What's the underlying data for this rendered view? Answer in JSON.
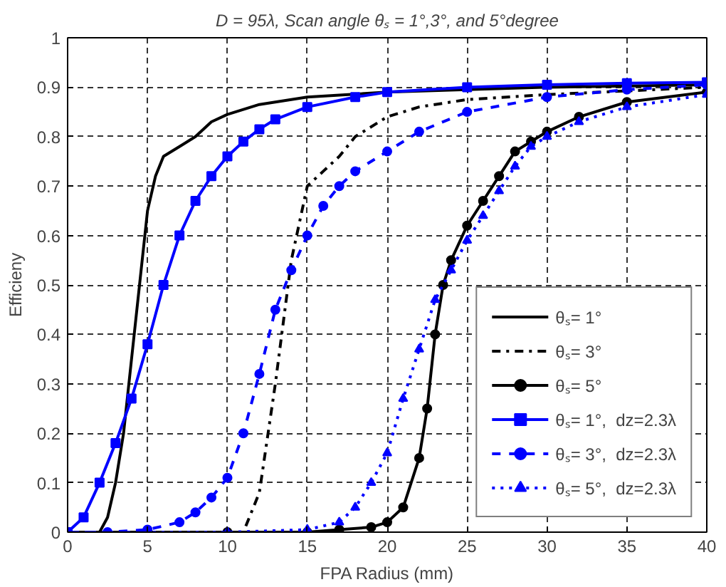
{
  "chart_data": {
    "type": "line",
    "title": "D = 95λ, Scan angle θₛ = 1°,3°, and 5°degree",
    "xlabel": "FPA Radius (mm)",
    "ylabel": "Efficieny",
    "xlim": [
      0,
      40
    ],
    "ylim": [
      0,
      1
    ],
    "xticks": [
      0,
      5,
      10,
      15,
      20,
      25,
      30,
      35,
      40
    ],
    "yticks": [
      0,
      {
        "value": 0.1,
        "label": "0.1"
      },
      {
        "value": 0.2,
        "label": "0.2"
      },
      {
        "value": 0.3,
        "label": "0.3"
      },
      {
        "value": 0.4,
        "label": "0.4"
      },
      {
        "value": 0.5,
        "label": "0.5"
      },
      {
        "value": 0.6,
        "label": "0.6"
      },
      {
        "value": 0.7,
        "label": "0.7"
      },
      {
        "value": 0.8,
        "label": "0.8"
      },
      {
        "value": 0.9,
        "label": "0.9"
      },
      1
    ],
    "grid": true,
    "legend": "bottom right",
    "series": [
      {
        "name": "θₛ= 1°",
        "color": "#000000",
        "marker": "none",
        "line_style": "solid",
        "x": [
          0,
          2,
          2.5,
          3,
          3.5,
          4,
          4.5,
          5,
          5.5,
          6,
          7,
          8,
          9,
          10,
          12,
          15,
          20,
          25,
          30,
          40
        ],
        "values": [
          0,
          0,
          0.03,
          0.1,
          0.2,
          0.35,
          0.5,
          0.65,
          0.72,
          0.76,
          0.78,
          0.8,
          0.83,
          0.845,
          0.865,
          0.88,
          0.89,
          0.895,
          0.9,
          0.905
        ]
      },
      {
        "name": "θₛ= 3°",
        "color": "#000000",
        "marker": "none",
        "line_style": "dashdot",
        "x": [
          0,
          11,
          12,
          13,
          14,
          15,
          16,
          17,
          18,
          20,
          22,
          25,
          30,
          40
        ],
        "values": [
          0,
          0,
          0.08,
          0.3,
          0.55,
          0.7,
          0.73,
          0.76,
          0.8,
          0.84,
          0.86,
          0.875,
          0.885,
          0.9
        ]
      },
      {
        "name": "θₛ= 5°",
        "color": "#000000",
        "marker": "circle",
        "line_style": "solid",
        "x": [
          0,
          5,
          10,
          15,
          17,
          19,
          20,
          21,
          22,
          22.5,
          23,
          23.5,
          24,
          25,
          26,
          27,
          28,
          29,
          30,
          32,
          35,
          40
        ],
        "values": [
          0,
          0,
          0,
          0,
          0.005,
          0.01,
          0.02,
          0.05,
          0.15,
          0.25,
          0.4,
          0.5,
          0.55,
          0.62,
          0.67,
          0.72,
          0.77,
          0.79,
          0.81,
          0.84,
          0.87,
          0.89
        ]
      },
      {
        "name": "θₛ= 1°,  dz=2.3λ",
        "color": "#0000ff",
        "marker": "square",
        "line_style": "solid",
        "x": [
          0,
          1,
          2,
          3,
          4,
          5,
          6,
          7,
          8,
          9,
          10,
          11,
          12,
          13,
          15,
          18,
          20,
          25,
          30,
          35,
          40
        ],
        "values": [
          0,
          0.03,
          0.1,
          0.18,
          0.27,
          0.38,
          0.5,
          0.6,
          0.67,
          0.72,
          0.76,
          0.79,
          0.815,
          0.835,
          0.86,
          0.88,
          0.89,
          0.9,
          0.905,
          0.908,
          0.91
        ]
      },
      {
        "name": "θₛ= 3°,  dz=2.3λ",
        "color": "#0000ff",
        "marker": "circle",
        "line_style": "dashed",
        "x": [
          0,
          2.5,
          5,
          7,
          8,
          9,
          10,
          11,
          12,
          13,
          14,
          15,
          16,
          17,
          18,
          20,
          22,
          25,
          30,
          35,
          40
        ],
        "values": [
          0,
          0,
          0.005,
          0.02,
          0.04,
          0.07,
          0.11,
          0.2,
          0.32,
          0.45,
          0.53,
          0.6,
          0.66,
          0.7,
          0.73,
          0.77,
          0.81,
          0.85,
          0.88,
          0.895,
          0.905
        ]
      },
      {
        "name": "θₛ= 5°,  dz=2.3λ",
        "color": "#0000ff",
        "marker": "triangle",
        "line_style": "dotted",
        "x": [
          0,
          5,
          10,
          15,
          17,
          18,
          19,
          20,
          21,
          22,
          23,
          24,
          25,
          26,
          27,
          28,
          29,
          30,
          32,
          35,
          40
        ],
        "values": [
          0,
          0,
          0,
          0.005,
          0.02,
          0.05,
          0.1,
          0.16,
          0.27,
          0.37,
          0.47,
          0.53,
          0.59,
          0.64,
          0.69,
          0.74,
          0.78,
          0.8,
          0.83,
          0.86,
          0.885
        ]
      }
    ]
  }
}
